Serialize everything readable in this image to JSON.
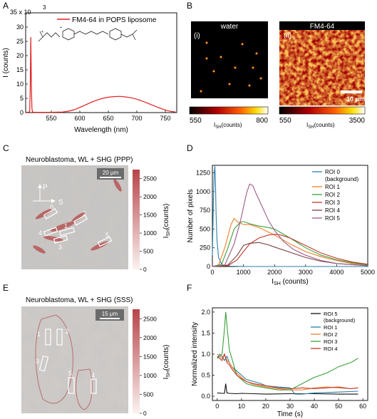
{
  "panel_letters": [
    "A",
    "B",
    "C",
    "D",
    "E",
    "F"
  ],
  "chart_data": [
    {
      "panel": "A",
      "type": "line",
      "title": "",
      "legend": [
        "FM4-64 in POPS liposome"
      ],
      "xlabel": "Wavelength (nm)",
      "ylabel": "I (counts)",
      "y_multiplier": "x 10",
      "y_multiplier_exp": "3",
      "xlim": [
        505,
        770
      ],
      "ylim": [
        0,
        35
      ],
      "xticks": [
        550,
        600,
        650,
        700,
        750
      ],
      "yticks": [
        0,
        5,
        10,
        15,
        20,
        25,
        30,
        35
      ],
      "legend_position": "top-right",
      "color": "#e02020",
      "series": [
        {
          "x": [
            505,
            512,
            513,
            514,
            515,
            516,
            517,
            520,
            530,
            540,
            550,
            560,
            570,
            580,
            590,
            600,
            610,
            620,
            630,
            640,
            650,
            660,
            670,
            680,
            690,
            700,
            710,
            720,
            730,
            740,
            750,
            760,
            768
          ],
          "values": [
            0.1,
            0.2,
            8,
            26.5,
            10,
            1.5,
            0.2,
            0.1,
            0.1,
            0.1,
            0.1,
            0.15,
            0.2,
            0.5,
            1,
            1.8,
            2.7,
            3.6,
            4.4,
            5.0,
            5.4,
            5.6,
            5.7,
            5.5,
            5.2,
            4.7,
            4.0,
            3.2,
            2.4,
            1.6,
            0.9,
            0.4,
            0.2
          ]
        }
      ]
    },
    {
      "panel": "B",
      "type": "heatmap",
      "images": [
        {
          "label": "(i)",
          "title": "water",
          "cbar_min": "550",
          "cbar_max": "800",
          "cbar_label": "I",
          "cbar_label_sub": "SH",
          "cbar_label_rest": "(counts)"
        },
        {
          "label": "(ii)",
          "title": "FM4-64",
          "cbar_min": "550",
          "cbar_max": "3500",
          "cbar_label": "I",
          "cbar_label_sub": "SH",
          "cbar_label_rest": "(counts)",
          "scalebar": "10 μm"
        }
      ]
    },
    {
      "panel": "C",
      "type": "heatmap",
      "title": "Neuroblastoma, WL + SHG (PPP)",
      "scalebar": "20 μm",
      "arrow_labels": [
        "P",
        "S"
      ],
      "roi_labels": [
        "0",
        "1",
        "2",
        "3",
        "4",
        "5"
      ],
      "colorbar_ticks": [
        0,
        500,
        1000,
        1500,
        2000,
        2500
      ],
      "cbar_label": "I",
      "cbar_label_sub": "SH",
      "cbar_label_rest": "(counts)"
    },
    {
      "panel": "D",
      "type": "line",
      "xlabel": "I",
      "xlabel_sub": "SH",
      "xlabel_rest": " (counts)",
      "ylabel": "Number of pixels",
      "xlim": [
        0,
        5000
      ],
      "ylim": [
        0,
        1350
      ],
      "xticks": [
        0,
        1000,
        2000,
        3000,
        4000,
        5000
      ],
      "yticks": [
        0,
        250,
        500,
        750,
        1000,
        1250
      ],
      "legend_position": "top-right",
      "series": [
        {
          "name": "ROI 0",
          "name2": "(background)",
          "color": "#2a7fa8",
          "x": [
            0,
            30,
            60,
            80,
            100,
            120,
            150,
            200,
            300,
            400,
            600,
            1000,
            5000
          ],
          "values": [
            150,
            800,
            1250,
            1340,
            1100,
            700,
            350,
            120,
            30,
            10,
            5,
            0,
            0
          ]
        },
        {
          "name": "ROI 1",
          "color": "#f07e26",
          "x": [
            0,
            200,
            400,
            600,
            700,
            800,
            1000,
            1200,
            1500,
            1800,
            2000,
            2500,
            3000,
            3500,
            4000,
            4500,
            5000
          ],
          "values": [
            0,
            20,
            250,
            560,
            640,
            600,
            560,
            560,
            520,
            460,
            420,
            300,
            200,
            130,
            80,
            40,
            20
          ]
        },
        {
          "name": "ROI 2",
          "color": "#3aa03a",
          "x": [
            0,
            300,
            500,
            700,
            900,
            1000,
            1200,
            1500,
            1800,
            2000,
            2500,
            3000,
            3500,
            4000,
            4500,
            5000
          ],
          "values": [
            0,
            30,
            250,
            500,
            590,
            600,
            570,
            540,
            520,
            500,
            380,
            250,
            150,
            90,
            50,
            20
          ]
        },
        {
          "name": "ROI 3",
          "color": "#c0392b",
          "x": [
            0,
            500,
            800,
            1000,
            1200,
            1500,
            1800,
            2000,
            2200,
            2500,
            3000,
            3500,
            4000,
            4500,
            5000
          ],
          "values": [
            0,
            10,
            90,
            200,
            300,
            380,
            420,
            430,
            420,
            380,
            280,
            180,
            110,
            60,
            30
          ]
        },
        {
          "name": "ROI 4",
          "color": "#7b3f3f",
          "x": [
            0,
            500,
            800,
            1000,
            1200,
            1500,
            1800,
            2000,
            2500,
            3000,
            3500,
            4000,
            5000
          ],
          "values": [
            0,
            20,
            150,
            280,
            310,
            320,
            290,
            260,
            190,
            120,
            70,
            40,
            10
          ]
        },
        {
          "name": "ROI 5",
          "color": "#9b5a8a",
          "x": [
            0,
            400,
            700,
            900,
            1100,
            1200,
            1300,
            1400,
            1600,
            1800,
            2000,
            2300,
            2600,
            3000,
            3500,
            4000,
            5000
          ],
          "values": [
            0,
            20,
            300,
            600,
            980,
            1100,
            1080,
            980,
            800,
            620,
            480,
            330,
            230,
            150,
            80,
            40,
            10
          ]
        }
      ]
    },
    {
      "panel": "E",
      "type": "heatmap",
      "title": "Neuroblastoma, WL + SHG (SSS)",
      "scalebar": "15 μm",
      "roi_labels": [
        "1",
        "2",
        "3",
        "4",
        "5"
      ],
      "colorbar_ticks": [
        0,
        500,
        1000,
        1500,
        2000,
        2500
      ],
      "cbar_label": "I",
      "cbar_label_sub": "SH",
      "cbar_label_rest": "(counts)"
    },
    {
      "panel": "F",
      "type": "line",
      "xlabel": "Time (s)",
      "ylabel": "Normalized intensity",
      "xlim": [
        -2,
        62
      ],
      "ylim": [
        -0.1,
        2.1
      ],
      "xticks": [
        0,
        10,
        20,
        30,
        40,
        50,
        60
      ],
      "yticks": [
        0.0,
        0.5,
        1.0,
        1.5,
        2.0
      ],
      "legend_position": "top-right",
      "series": [
        {
          "name": "ROI 5",
          "name2": "(background)",
          "color": "#111111",
          "x": [
            0,
            2,
            3,
            3.5,
            4,
            5,
            8,
            10,
            15,
            20,
            30,
            40,
            50,
            58
          ],
          "values": [
            0.08,
            0.07,
            0.07,
            0.3,
            0.08,
            0.07,
            0.06,
            0.07,
            0.06,
            0.05,
            0.06,
            0.06,
            0.05,
            0.05
          ]
        },
        {
          "name": "ROI 1",
          "color": "#2a7fa8",
          "x": [
            0,
            1,
            2,
            3,
            4,
            5,
            6,
            8,
            10,
            12,
            15,
            18,
            20,
            25,
            30,
            32,
            35,
            40,
            50,
            58
          ],
          "values": [
            0.9,
            1.0,
            0.95,
            0.85,
            0.95,
            0.8,
            0.7,
            0.6,
            0.5,
            0.4,
            0.35,
            0.3,
            0.25,
            0.22,
            0.2,
            0.05,
            0.05,
            0.08,
            0.1,
            0.12
          ]
        },
        {
          "name": "ROI 2",
          "color": "#f07e26",
          "x": [
            0,
            1,
            2,
            3,
            4,
            5,
            6,
            8,
            10,
            12,
            15,
            20,
            25,
            30,
            35,
            40,
            45,
            50,
            55,
            58
          ],
          "values": [
            1.0,
            0.95,
            0.9,
            1.0,
            0.85,
            0.8,
            0.7,
            0.55,
            0.45,
            0.35,
            0.28,
            0.22,
            0.18,
            0.15,
            0.15,
            0.2,
            0.22,
            0.2,
            0.18,
            0.2
          ]
        },
        {
          "name": "ROI 3",
          "color": "#3aa03a",
          "x": [
            0,
            1,
            2,
            3,
            3.5,
            4,
            4.5,
            5,
            6,
            7,
            8,
            10,
            12,
            15,
            20,
            25,
            30,
            35,
            40,
            45,
            50,
            55,
            58
          ],
          "values": [
            0.9,
            0.95,
            1.0,
            1.6,
            2.0,
            1.7,
            1.4,
            1.1,
            0.9,
            0.7,
            0.5,
            0.4,
            0.3,
            0.25,
            0.2,
            0.15,
            0.15,
            0.3,
            0.45,
            0.55,
            0.7,
            0.8,
            0.9
          ]
        },
        {
          "name": "ROI 4",
          "color": "#c0392b",
          "x": [
            0,
            1,
            2,
            3,
            4,
            5,
            6,
            8,
            10,
            12,
            15,
            20,
            25,
            30,
            35,
            40,
            45,
            50,
            55,
            58
          ],
          "values": [
            0.95,
            0.9,
            0.85,
            1.0,
            0.8,
            0.75,
            0.65,
            0.5,
            0.42,
            0.35,
            0.3,
            0.25,
            0.2,
            0.18,
            0.2,
            0.18,
            0.2,
            0.22,
            0.18,
            0.2
          ]
        }
      ]
    }
  ]
}
